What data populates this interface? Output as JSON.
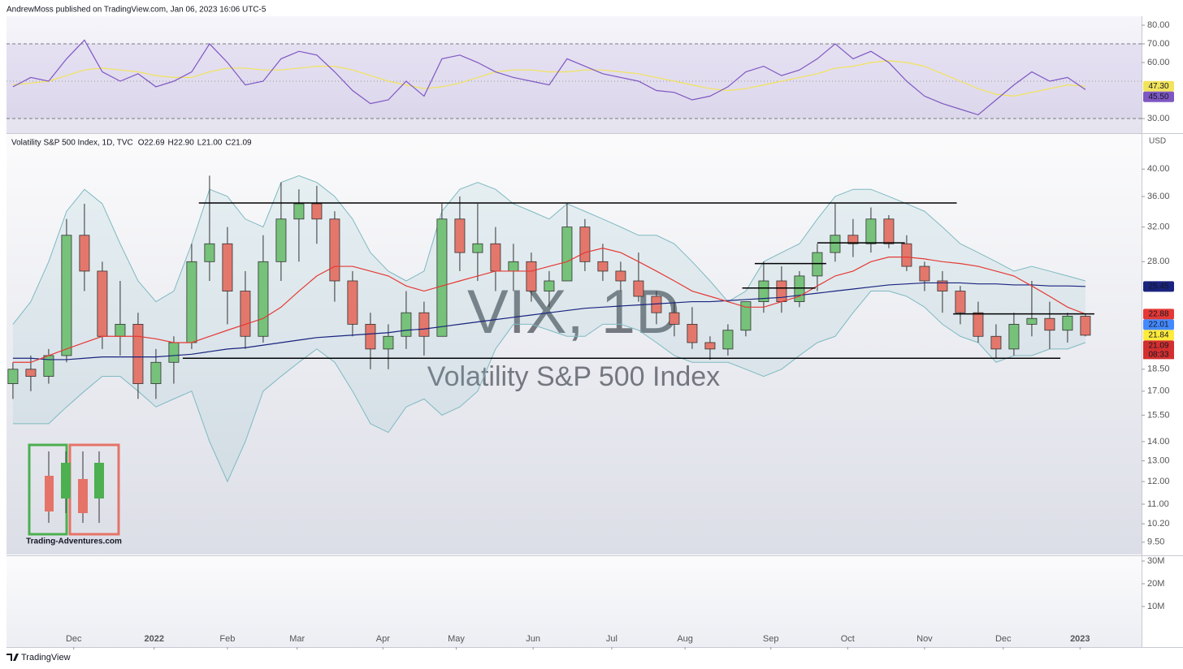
{
  "header": "AndrewMoss published on TradingView.com, Jan 06, 2023 16:06 UTC-5",
  "footer": "TradingView",
  "chart_data": [
    {
      "type": "line",
      "xlim": [
        -0.36,
        63.14
      ],
      "ylim": [
        22.6,
        84.8
      ],
      "yticks": [
        {
          "value": 80,
          "label": "80.00"
        },
        {
          "value": 70,
          "label": "70.00"
        },
        {
          "value": 60,
          "label": "60.00"
        },
        {
          "value": 30,
          "label": "30.00"
        }
      ],
      "bands": [
        30,
        70
      ],
      "midline": 50,
      "band_color": "#7e57c2",
      "series": [
        {
          "color": "#7e57c2",
          "last_label": "45.50",
          "values": [
            47,
            52,
            50,
            62,
            72,
            55,
            50,
            54,
            47,
            50,
            55,
            70,
            60,
            48,
            50,
            62,
            66,
            64,
            55,
            45,
            38,
            40,
            50,
            42,
            62,
            64,
            60,
            55,
            52,
            50,
            48,
            62,
            58,
            54,
            52,
            50,
            45,
            44,
            40,
            42,
            47,
            55,
            58,
            53,
            56,
            62,
            70,
            62,
            66,
            60,
            50,
            42,
            38,
            35,
            32,
            40,
            48,
            55,
            50,
            52,
            45.5
          ]
        },
        {
          "color": "#f2e35c",
          "last_label": "47.30",
          "values": [
            48,
            49,
            50,
            53,
            56,
            57,
            56,
            55,
            53,
            52,
            52,
            55,
            57,
            57,
            56,
            56,
            57,
            58,
            58,
            56,
            53,
            50,
            48,
            46,
            47,
            49,
            52,
            55,
            56,
            56,
            55,
            55,
            56,
            56,
            55,
            54,
            52,
            50,
            48,
            46,
            45,
            46,
            48,
            50,
            52,
            54,
            57,
            58,
            60,
            61,
            60,
            58,
            54,
            50,
            46,
            43,
            42,
            44,
            46,
            48,
            47.3
          ]
        }
      ]
    },
    {
      "type": "candlestick",
      "legend": [
        "Volatility S&P 500 Index, 1D, TVC",
        "O22.69",
        "H22.90",
        "L21.00",
        "C21.09"
      ],
      "watermark": [
        "VIX, 1D",
        "Volatility S&P 500 Index"
      ],
      "currency": "USD",
      "logo": "Trading-Adventures.com",
      "log_scale": true,
      "xlim": [
        -0.36,
        63.14
      ],
      "ylim": [
        9.06,
        45.8
      ],
      "yticks": [
        {
          "value": 40,
          "label": "40.00"
        },
        {
          "value": 36,
          "label": "36.00"
        },
        {
          "value": 32,
          "label": "32.00"
        },
        {
          "value": 28,
          "label": "28.00"
        },
        {
          "value": 18.5,
          "label": "18.50"
        },
        {
          "value": 17,
          "label": "17.00"
        },
        {
          "value": 15.5,
          "label": "15.50"
        },
        {
          "value": 14,
          "label": "14.00"
        },
        {
          "value": 13,
          "label": "13.00"
        },
        {
          "value": 12,
          "label": "12.00"
        },
        {
          "value": 11,
          "label": "11.00"
        },
        {
          "value": 10.2,
          "label": "10.20"
        },
        {
          "value": 9.5,
          "label": "9.50"
        }
      ],
      "up_color": "#76c27a",
      "down_color": "#e3776c",
      "open": [
        17.5,
        18.5,
        18,
        19.5,
        31,
        27,
        21,
        22,
        17.5,
        19,
        20.5,
        28,
        30,
        25,
        21,
        28,
        33,
        35,
        33,
        26,
        22,
        20,
        21,
        23,
        21,
        33,
        29,
        30,
        27,
        28,
        25,
        26,
        32,
        28,
        27,
        26,
        24.5,
        23,
        22,
        20.5,
        20,
        21.5,
        24,
        26,
        24,
        26.5,
        29,
        31,
        30,
        33,
        30,
        27.5,
        26,
        25,
        23,
        21,
        20,
        22,
        22.5,
        21.5,
        22.69
      ],
      "high": [
        19,
        19.5,
        20,
        33,
        35,
        28,
        26,
        23,
        20,
        21,
        30,
        39,
        32,
        27,
        31,
        38,
        37,
        37.5,
        34,
        27,
        23,
        22,
        25,
        24,
        35,
        36,
        35,
        32,
        30,
        29,
        27,
        35,
        33,
        30,
        28,
        29,
        25,
        24,
        23.5,
        21,
        22,
        24,
        28,
        27.5,
        27,
        30,
        35,
        33,
        34.5,
        33.5,
        31,
        28,
        27,
        25.5,
        24,
        22,
        23,
        26,
        24,
        23,
        22.9
      ],
      "low": [
        16.5,
        17,
        17.5,
        19,
        25,
        20,
        19.5,
        16.5,
        16.5,
        17.5,
        20,
        26,
        22,
        20,
        20.5,
        26,
        28,
        30,
        24,
        21,
        18.5,
        18.5,
        20,
        19.5,
        21,
        27,
        26,
        25,
        25,
        24,
        23.5,
        26,
        27,
        26,
        25,
        24,
        22,
        21,
        20,
        19.2,
        19.5,
        21,
        23,
        23,
        23.5,
        25,
        28,
        28.5,
        29,
        29.5,
        27,
        25,
        23,
        22,
        20.5,
        19.3,
        19.5,
        21,
        20,
        20.5,
        21
      ],
      "close": [
        18.5,
        18,
        19.5,
        31,
        27,
        21,
        22,
        17.5,
        19,
        20.5,
        28,
        30,
        25,
        21,
        28,
        33,
        35,
        33,
        26,
        22,
        20,
        21,
        23,
        21,
        33,
        29,
        30,
        27,
        28,
        25,
        26,
        32,
        28,
        27,
        26,
        24.5,
        23,
        22,
        20.5,
        20,
        21.5,
        24,
        26,
        24,
        26.5,
        29,
        31,
        30,
        33,
        30,
        27.5,
        26,
        25,
        23,
        21,
        20,
        22,
        22.5,
        21.5,
        22.7,
        21.09
      ],
      "bollinger": {
        "color": "#7fb9c2",
        "upper": [
          22,
          24,
          28,
          34,
          37,
          35,
          30,
          26,
          24,
          25,
          30,
          37,
          36,
          33,
          32,
          38,
          39,
          38,
          36,
          33,
          29,
          27,
          26,
          27,
          34,
          37,
          38,
          37,
          35,
          34,
          33,
          35,
          34,
          33,
          32,
          31,
          31,
          30,
          28,
          26,
          24,
          25,
          28,
          29,
          30,
          33,
          36,
          37,
          37,
          36,
          35,
          34,
          32,
          30,
          29,
          28,
          27,
          27.5,
          27,
          26.5,
          26
        ],
        "lower": [
          15,
          15,
          15,
          16,
          17,
          18,
          18,
          17,
          16,
          16.5,
          17,
          14,
          12,
          14,
          17,
          18,
          19,
          20,
          19,
          17,
          15,
          14.5,
          16,
          16.5,
          15.5,
          16,
          17,
          20,
          22,
          22,
          21.5,
          21,
          21,
          22,
          22,
          21.5,
          20.5,
          19.5,
          19,
          19,
          19,
          18.5,
          18,
          18.5,
          19.5,
          20.5,
          21,
          23,
          25,
          25,
          24.5,
          23.5,
          22,
          21,
          20.5,
          19,
          19.5,
          19.5,
          20,
          20,
          20.5
        ]
      },
      "lines": [
        {
          "color": "#1a237e",
          "values": [
            19.3,
            19.3,
            19.2,
            19.2,
            19.3,
            19.4,
            19.4,
            19.4,
            19.4,
            19.5,
            19.6,
            19.8,
            20,
            20.1,
            20.3,
            20.5,
            20.7,
            20.9,
            21,
            21.1,
            21.2,
            21.3,
            21.5,
            21.6,
            21.8,
            22,
            22.2,
            22.4,
            22.6,
            22.8,
            23,
            23.2,
            23.4,
            23.5,
            23.6,
            23.7,
            23.8,
            23.9,
            24,
            24,
            24.1,
            24.2,
            24.3,
            24.4,
            24.6,
            24.8,
            25,
            25.2,
            25.4,
            25.6,
            25.7,
            25.8,
            25.8,
            25.8,
            25.7,
            25.7,
            25.6,
            25.6,
            25.5,
            25.5,
            25.45
          ]
        },
        {
          "color": "#e53935",
          "values": [
            19,
            19,
            19.5,
            20,
            20.5,
            21,
            21,
            21,
            20.8,
            20.5,
            20.5,
            21,
            21.5,
            22,
            22.5,
            23.5,
            25,
            26.5,
            27.5,
            27.5,
            27,
            26.5,
            25.5,
            25,
            25.5,
            26,
            26.5,
            27,
            27,
            27,
            27.5,
            28,
            29,
            29.5,
            29,
            28,
            27,
            26,
            25,
            24.5,
            24,
            23.5,
            23.5,
            24,
            24.5,
            25.5,
            26.5,
            27,
            28,
            28.5,
            28.5,
            28.3,
            28,
            27.8,
            27.5,
            27,
            26.5,
            25.5,
            24.5,
            23.5,
            22.88
          ]
        }
      ],
      "drawn_lines": [
        {
          "start": 10.4,
          "end": 52.8,
          "price": 35.1
        },
        {
          "start": 9.5,
          "end": 58.6,
          "price": 19.3
        },
        {
          "start": 41.5,
          "end": 45.5,
          "price": 27.8
        },
        {
          "start": 40.8,
          "end": 44.9,
          "price": 25.3
        },
        {
          "start": 45,
          "end": 49.9,
          "price": 30.1
        },
        {
          "start": 52.6,
          "end": 60.5,
          "price": 22.9
        }
      ],
      "price_badges": [
        {
          "value": 25.45,
          "label": "25.45",
          "color": "#1a237e"
        },
        {
          "value": 22.88,
          "label": "22.88",
          "color": "#e53935"
        },
        {
          "value": 22.01,
          "label": "22.01",
          "color": "#448aff"
        },
        {
          "value": 21.84,
          "label": "21.84",
          "color": "#ffeb3b"
        },
        {
          "value": 21.09,
          "label": "21.09",
          "color": "#d32f2f",
          "countdown": "08:33"
        }
      ]
    },
    {
      "type": "bar",
      "xlim": [
        -0.36,
        63.14
      ],
      "ylim": [
        -7860000,
        32140000
      ],
      "yticks": [
        {
          "value": 30000000,
          "label": "30M"
        },
        {
          "value": 20000000,
          "label": "20M"
        },
        {
          "value": 10000000,
          "label": "10M"
        }
      ],
      "xticks": [
        {
          "value": 3.4,
          "label": "Dec"
        },
        {
          "value": 7.9,
          "label": "2022"
        },
        {
          "value": 12,
          "label": "Feb"
        },
        {
          "value": 15.9,
          "label": "Mar"
        },
        {
          "value": 20.7,
          "label": "Apr"
        },
        {
          "value": 24.8,
          "label": "May"
        },
        {
          "value": 29.1,
          "label": "Jun"
        },
        {
          "value": 33.5,
          "label": "Jul"
        },
        {
          "value": 37.6,
          "label": "Aug"
        },
        {
          "value": 42.4,
          "label": "Sep"
        },
        {
          "value": 46.7,
          "label": "Oct"
        },
        {
          "value": 51,
          "label": "Nov"
        },
        {
          "value": 55.4,
          "label": "Dec"
        },
        {
          "value": 59.7,
          "label": "2023"
        }
      ]
    }
  ]
}
